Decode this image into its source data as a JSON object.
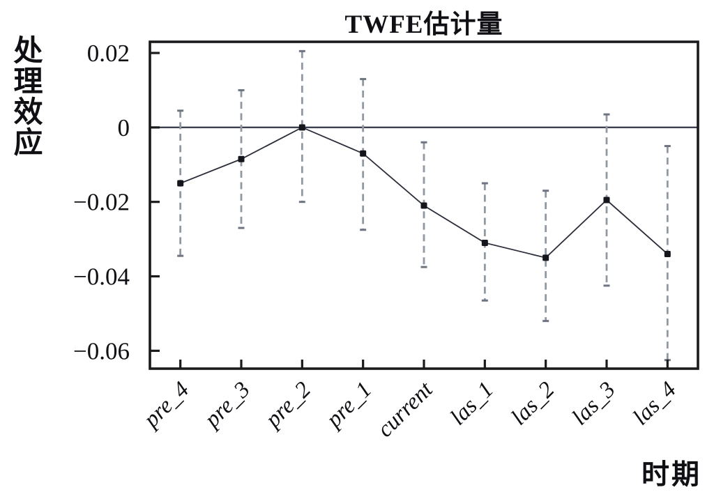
{
  "chart_data": {
    "type": "line",
    "subtype": "point-estimates-with-confidence-intervals",
    "title": "TWFE估计量",
    "ylabel": "处理效应",
    "xlabel": "时期",
    "categories": [
      "pre_4",
      "pre_3",
      "pre_2",
      "pre_1",
      "current",
      "las_1",
      "las_2",
      "las_3",
      "las_4"
    ],
    "series": [
      {
        "name": "TWFE estimate",
        "values": [
          -0.015,
          -0.0085,
          0.0,
          -0.007,
          -0.021,
          -0.031,
          -0.035,
          -0.0195,
          -0.034
        ],
        "ci_low": [
          -0.0345,
          -0.027,
          -0.02,
          -0.0275,
          -0.0375,
          -0.0465,
          -0.052,
          -0.0425,
          -0.0625
        ],
        "ci_high": [
          0.0045,
          0.01,
          0.0205,
          0.013,
          -0.004,
          -0.015,
          -0.017,
          0.0035,
          -0.005
        ]
      }
    ],
    "yticks": [
      0.02,
      0,
      -0.02,
      -0.04,
      -0.06
    ],
    "ytick_labels": [
      "0.02",
      "0",
      "−0.02",
      "−0.04",
      "−0.06"
    ],
    "ylim": [
      -0.0648,
      0.023
    ],
    "zero_line": true,
    "grid": false,
    "legend": "none",
    "colors": {
      "axis": "#1a1a1d",
      "text": "#101014",
      "line": "#2b2d39",
      "marker": "#15151c",
      "whisker": "#9098a2",
      "whisker_cap": "#6e7480",
      "zero_line": "#3c404e",
      "background": "#ffffff"
    }
  }
}
